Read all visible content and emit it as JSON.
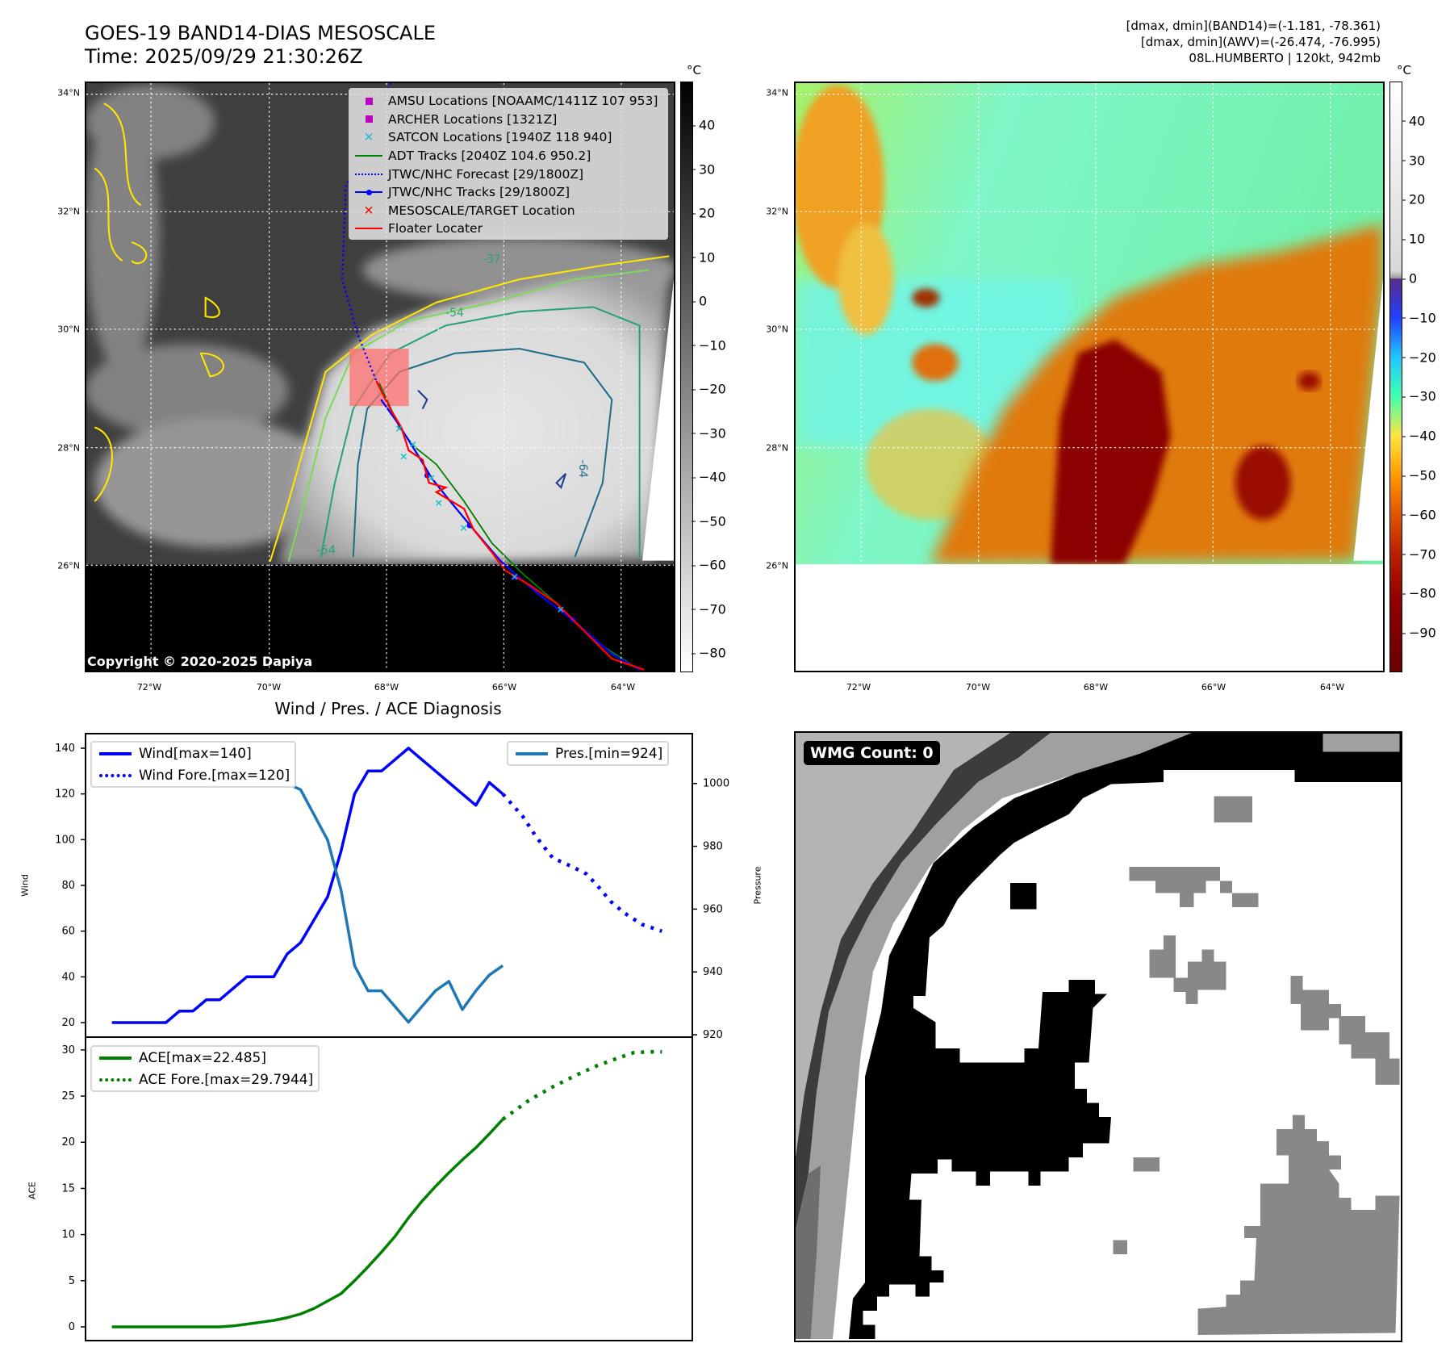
{
  "header": {
    "title_line1": "GOES-19 BAND14-DIAS MESOSCALE",
    "title_line2": "Time: 2025/09/29 21:30:26Z",
    "info_line1": "[dmax, dmin](BAND14)=(-1.181, -78.361)",
    "info_line2": "[dmax, dmin](AWV)=(-26.474, -76.995)",
    "info_line3": "08L.HUMBERTO | 120kt, 942mb"
  },
  "map": {
    "lat_ticks": [
      "34°N",
      "32°N",
      "30°N",
      "28°N",
      "26°N"
    ],
    "lon_ticks": [
      "72°W",
      "70°W",
      "68°W",
      "66°W",
      "64°W"
    ],
    "contour_labels": [
      "-54",
      "-37",
      "-54",
      "-64"
    ],
    "copyright": "Copyright © 2020-2025 Dapiya",
    "legend": [
      {
        "label": "AMSU Locations [NOAAMC/1411Z 107 953]",
        "symbol": "square",
        "color": "#c000c0"
      },
      {
        "label": "ARCHER Locations [1321Z]",
        "symbol": "square",
        "color": "#c000c0"
      },
      {
        "label": "SATCON Locations [1940Z 118 940]",
        "symbol": "x",
        "color": "#17becf"
      },
      {
        "label": "ADT Tracks [2040Z 104.6 950.2]",
        "symbol": "line",
        "color": "#008000"
      },
      {
        "label": "JTWC/NHC Forecast [29/1800Z]",
        "symbol": "dotted",
        "color": "#0000ff"
      },
      {
        "label": "JTWC/NHC Tracks [29/1800Z]",
        "symbol": "line-dot",
        "color": "#0000ff"
      },
      {
        "label": "MESOSCALE/TARGET Location",
        "symbol": "x",
        "color": "#ff0000"
      },
      {
        "label": "Floater Locater",
        "symbol": "line",
        "color": "#ff0000"
      }
    ]
  },
  "colorbar_left": {
    "unit": "°C",
    "ticks": [
      40,
      30,
      20,
      10,
      0,
      -10,
      -20,
      -30,
      -40,
      -50,
      -60,
      -70,
      -80
    ],
    "range": [
      -84.4,
      50
    ]
  },
  "colorbar_right": {
    "unit": "°C",
    "ticks": [
      40,
      30,
      20,
      10,
      0,
      -10,
      -20,
      -30,
      -40,
      -50,
      -60,
      -70,
      -80,
      -90
    ],
    "range": [
      -100,
      50
    ]
  },
  "wmg": {
    "label": "WMG Count: 0"
  },
  "chart_data": [
    {
      "type": "line",
      "title": "Wind / Pres. / ACE Diagnosis",
      "ylabel": "Wind",
      "ylabel_right": "Pressure",
      "ylim": [
        14,
        146
      ],
      "ylim_right": [
        919.5,
        1015.6
      ],
      "xlim": [
        -1.9,
        43
      ],
      "yticks": [
        20,
        40,
        60,
        80,
        100,
        120,
        140
      ],
      "yticks_right": [
        920,
        940,
        960,
        980,
        1000
      ],
      "series": [
        {
          "name": "Wind[max=140]",
          "color": "#0000ff",
          "style": "solid",
          "x": [
            0,
            1,
            2,
            3,
            4,
            5,
            6,
            7,
            8,
            9,
            10,
            11,
            12,
            13,
            14,
            15,
            16,
            17,
            18,
            19,
            20,
            21,
            22,
            23,
            24,
            25,
            26,
            27,
            28,
            29
          ],
          "values": [
            20,
            20,
            20,
            20,
            20,
            25,
            25,
            30,
            30,
            35,
            40,
            40,
            40,
            50,
            55,
            65,
            75,
            95,
            120,
            130,
            130,
            135,
            140,
            135,
            130,
            125,
            120,
            115,
            125,
            120
          ]
        },
        {
          "name": "Wind Fore.[max=120]",
          "color": "#0000ff",
          "style": "dotted",
          "x": [
            29,
            30.5,
            31.5,
            32.7,
            34.2,
            35.2,
            36,
            37,
            38,
            39.3,
            40.8
          ],
          "values": [
            120,
            110,
            101,
            92,
            88,
            85,
            80,
            73,
            68,
            63,
            60
          ]
        },
        {
          "name": "Pres.[min=924]",
          "color": "#1f77b4",
          "style": "solid",
          "axis": "right",
          "x": [
            0,
            1,
            2,
            3,
            4,
            5,
            6,
            7,
            8,
            9,
            10,
            11,
            12,
            13,
            14,
            15,
            16,
            17,
            18,
            19,
            20,
            21,
            22,
            23,
            24,
            25,
            26,
            27,
            28,
            29
          ],
          "values": [
            1011,
            1011,
            1011,
            1011,
            1011,
            1010,
            1010,
            1010,
            1010,
            1008,
            1007.5,
            1007.5,
            1006,
            1000,
            998,
            990,
            982,
            966,
            942,
            934,
            934,
            929,
            924,
            929,
            934,
            937,
            928,
            934,
            939,
            942
          ]
        }
      ]
    },
    {
      "type": "line",
      "ylabel": "ACE",
      "ylim": [
        -1.4,
        31.3
      ],
      "xlim": [
        -1.9,
        43
      ],
      "yticks": [
        0,
        5,
        10,
        15,
        20,
        25,
        30
      ],
      "series": [
        {
          "name": "ACE[max=22.485]",
          "color": "#008000",
          "style": "solid",
          "x": [
            0,
            1,
            2,
            3,
            4,
            5,
            6,
            7,
            8,
            9,
            10,
            11,
            12,
            13,
            14,
            15,
            16,
            17,
            18,
            19,
            20,
            21,
            22,
            23,
            24,
            25,
            26,
            27,
            28,
            29
          ],
          "values": [
            0,
            0,
            0,
            0,
            0,
            0,
            0,
            0,
            0,
            0.1,
            0.3,
            0.5,
            0.7,
            1.0,
            1.4,
            2.0,
            2.8,
            3.6,
            5.0,
            6.5,
            8.1,
            9.8,
            11.8,
            13.6,
            15.2,
            16.7,
            18.1,
            19.4,
            20.9,
            22.485
          ]
        },
        {
          "name": "ACE Fore.[max=29.7944]",
          "color": "#008000",
          "style": "dotted",
          "x": [
            29,
            31,
            32.7,
            34.5,
            36,
            37.5,
            38.7,
            39.8,
            40.8
          ],
          "values": [
            22.485,
            24.6,
            26.0,
            27.3,
            28.3,
            29.1,
            29.7,
            29.8,
            29.79
          ]
        }
      ]
    }
  ]
}
